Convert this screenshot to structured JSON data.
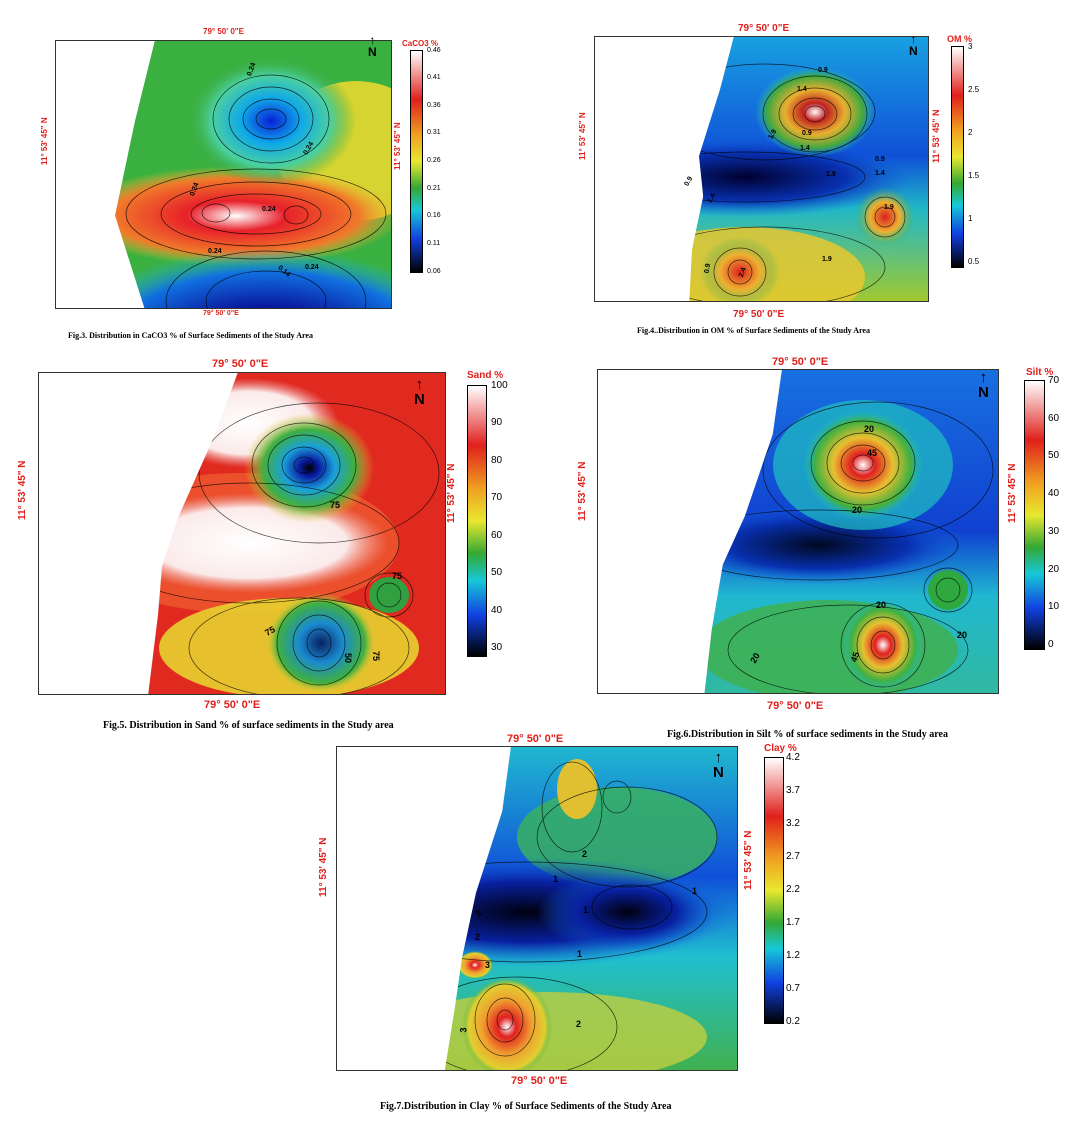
{
  "north_label": "N",
  "figures": [
    {
      "id": "fig3",
      "caption": "Fig.3. Distribution in CaCO3 % of Surface Sediments of the Study Area",
      "legend_title": "CaCO3 %",
      "lon_top": "79° 50' 0\"E",
      "lon_bottom": "79° 50' 0\"E",
      "lat_left": "11° 53' 45\" N",
      "lat_right": "11° 53' 45\" N",
      "ticks": [
        "0.46",
        "0.41",
        "0.36",
        "0.31",
        "0.26",
        "0.21",
        "0.16",
        "0.11",
        "0.06"
      ],
      "contour_labels": [
        "0.24",
        "0.24",
        "0.24",
        "0.24",
        "0.24",
        "0.14",
        "0.24"
      ],
      "colors": [
        "#ffffff",
        "#e0201c",
        "#f0a020",
        "#e8e830",
        "#34a832",
        "#16c8d8",
        "#1040e0",
        "#000000"
      ]
    },
    {
      "id": "fig4",
      "caption": "Fig.4..Distribution in  OM % of Surface Sediments of the Study Area",
      "legend_title": "OM %",
      "lon_top": "79° 50' 0\"E",
      "lon_bottom": "79° 50' 0\"E",
      "lat_left": "11° 53' 45\" N",
      "lat_right": "11° 53' 45\" N",
      "ticks": [
        "3",
        "2.5",
        "2",
        "1.5",
        "1",
        "0.5"
      ],
      "contour_labels": [
        "0.9",
        "1.4",
        "1.9",
        "0.9",
        "1.4",
        "0.9",
        "1.4",
        "1.9",
        "0.9",
        "1.4",
        "1.9",
        "2.4",
        "1.9",
        "0.9"
      ],
      "colors": [
        "#ffffff",
        "#e0201c",
        "#f0a020",
        "#e8e830",
        "#34a832",
        "#16c8d8",
        "#1040e0",
        "#000000"
      ]
    },
    {
      "id": "fig5",
      "caption": "Fig.5. Distribution in Sand % of surface sediments in the Study area",
      "legend_title": "Sand %",
      "lon_top": "79° 50' 0\"E",
      "lon_bottom": "79° 50' 0\"E",
      "lat_left": "11° 53' 45\" N",
      "lat_right": "11° 53' 45\" N",
      "ticks": [
        "100",
        "90",
        "80",
        "70",
        "60",
        "50",
        "40",
        "30"
      ],
      "contour_labels": [
        "75",
        "75",
        "75",
        "50",
        "75"
      ],
      "colors": [
        "#ffffff",
        "#e0201c",
        "#f0a020",
        "#e8e830",
        "#34a832",
        "#16c8d8",
        "#1040e0",
        "#000000"
      ]
    },
    {
      "id": "fig6",
      "caption": "Fig.6.Distribution in Silt % of surface sediments in the Study area",
      "legend_title": "Silt %",
      "lon_top": "79° 50' 0\"E",
      "lon_bottom": "79° 50' 0\"E",
      "lat_left": "11° 53' 45\" N",
      "lat_right": "11° 53' 45\" N",
      "ticks": [
        "70",
        "60",
        "50",
        "40",
        "30",
        "20",
        "10",
        "0"
      ],
      "contour_labels": [
        "20",
        "45",
        "20",
        "20",
        "20",
        "20",
        "45"
      ],
      "colors": [
        "#ffffff",
        "#e0201c",
        "#f0a020",
        "#e8e830",
        "#34a832",
        "#16c8d8",
        "#1040e0",
        "#000000"
      ]
    },
    {
      "id": "fig7",
      "caption": "Fig.7.Distribution in Clay % of Surface Sediments of the Study Area",
      "legend_title": "Clay %",
      "lon_top": "79° 50' 0\"E",
      "lon_bottom": "79° 50' 0\"E",
      "lat_left": "11° 53' 45\" N",
      "lat_right": "11° 53' 45\" N",
      "ticks": [
        "4.2",
        "3.7",
        "3.2",
        "2.7",
        "2.2",
        "1.7",
        "1.2",
        "0.7",
        "0.2"
      ],
      "contour_labels": [
        "1",
        "2",
        "1",
        "1",
        "1",
        "2",
        "2",
        "3",
        "3",
        "2"
      ],
      "colors": [
        "#ffffff",
        "#e0201c",
        "#f0a020",
        "#e8e830",
        "#34a832",
        "#16c8d8",
        "#1040e0",
        "#000000"
      ]
    }
  ]
}
